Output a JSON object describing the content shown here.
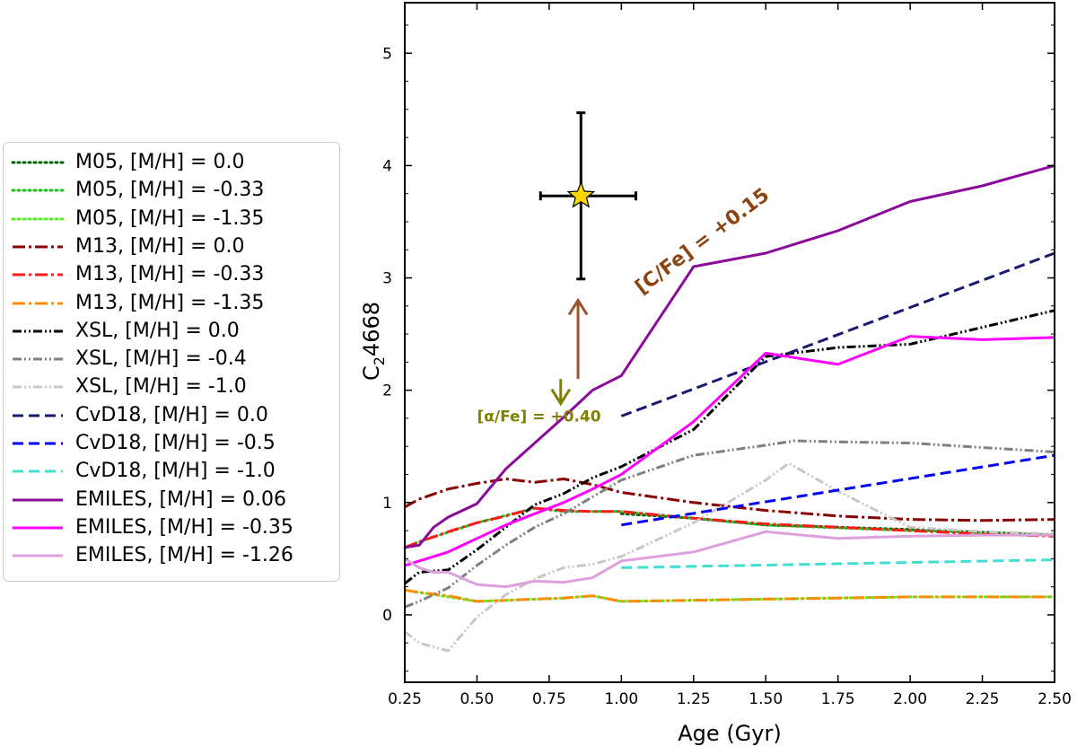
{
  "chart_data": {
    "type": "line",
    "xlabel": "Age (Gyr)",
    "ylabel": "C",
    "ylabel_sub": "2",
    "ylabel_suffix": "4668",
    "xlim": [
      0.25,
      2.5
    ],
    "ylim": [
      -0.6,
      5.45
    ],
    "xticks": [
      "0.25",
      "0.50",
      "0.75",
      "1.00",
      "1.25",
      "1.50",
      "1.75",
      "2.00",
      "2.25",
      "2.50"
    ],
    "yticks": [
      "0",
      "1",
      "2",
      "3",
      "4",
      "5"
    ],
    "legend_position": "left-outside",
    "series": [
      {
        "name": "M05, [M/H] = 0.0",
        "color": "#006400",
        "dash": "dotted",
        "x": [
          1.0,
          1.25,
          1.5,
          2.0,
          2.5
        ],
        "y": [
          0.9,
          0.86,
          0.8,
          0.76,
          0.71
        ]
      },
      {
        "name": "M05, [M/H] = -0.33",
        "color": "#22bb22",
        "dash": "dotted",
        "x": [
          0.25,
          0.3,
          0.5,
          0.7,
          0.8,
          1.0,
          1.25,
          1.5,
          2.0,
          2.5
        ],
        "y": [
          0.6,
          0.65,
          0.82,
          0.95,
          0.92,
          0.92,
          0.86,
          0.8,
          0.75,
          0.71
        ]
      },
      {
        "name": "M05, [M/H] = -1.35",
        "color": "#55ee22",
        "dash": "dotted",
        "x": [
          0.25,
          0.3,
          0.5,
          0.6,
          0.8,
          0.9,
          1.0,
          1.5,
          2.0,
          2.5
        ],
        "y": [
          0.22,
          0.2,
          0.12,
          0.13,
          0.15,
          0.17,
          0.12,
          0.14,
          0.16,
          0.16
        ]
      },
      {
        "name": "M13, [M/H] = 0.0",
        "color": "#8b0000",
        "dash": "dashdot",
        "x": [
          0.25,
          0.3,
          0.4,
          0.5,
          0.6,
          0.7,
          0.8,
          0.9,
          1.0,
          1.25,
          1.5,
          1.75,
          2.0,
          2.25,
          2.5
        ],
        "y": [
          0.96,
          1.03,
          1.12,
          1.17,
          1.21,
          1.18,
          1.21,
          1.16,
          1.09,
          1.0,
          0.93,
          0.88,
          0.85,
          0.84,
          0.85
        ]
      },
      {
        "name": "M13, [M/H] = -0.33",
        "color": "#ff1a1a",
        "dash": "dashdot",
        "x": [
          0.25,
          0.3,
          0.4,
          0.5,
          0.6,
          0.7,
          0.8,
          0.9,
          1.0,
          1.25,
          1.5,
          1.75,
          2.0,
          2.25,
          2.5
        ],
        "y": [
          0.6,
          0.65,
          0.74,
          0.82,
          0.88,
          0.95,
          0.93,
          0.92,
          0.92,
          0.86,
          0.81,
          0.78,
          0.75,
          0.72,
          0.7
        ]
      },
      {
        "name": "M13, [M/H] = -1.35",
        "color": "#ff8c00",
        "dash": "dashdot",
        "x": [
          0.25,
          0.3,
          0.4,
          0.5,
          0.6,
          0.7,
          0.8,
          0.9,
          1.0,
          1.25,
          1.5,
          1.75,
          2.0,
          2.25,
          2.5
        ],
        "y": [
          0.22,
          0.2,
          0.17,
          0.12,
          0.13,
          0.14,
          0.15,
          0.17,
          0.12,
          0.13,
          0.14,
          0.15,
          0.16,
          0.16,
          0.16
        ]
      },
      {
        "name": "XSL, [M/H] = 0.0",
        "color": "#000000",
        "dash": "dashdotdot",
        "x": [
          0.25,
          0.3,
          0.4,
          0.5,
          0.6,
          0.7,
          0.8,
          0.9,
          1.0,
          1.25,
          1.5,
          1.75,
          2.0,
          2.25,
          2.5
        ],
        "y": [
          0.28,
          0.38,
          0.4,
          0.58,
          0.78,
          0.98,
          1.08,
          1.22,
          1.32,
          1.65,
          2.3,
          2.38,
          2.41,
          2.56,
          2.71
        ]
      },
      {
        "name": "XSL, [M/H] = -0.4",
        "color": "#808080",
        "dash": "dashdotdot",
        "x": [
          0.25,
          0.3,
          0.4,
          0.5,
          0.6,
          0.7,
          0.8,
          0.9,
          1.0,
          1.25,
          1.5,
          1.6,
          1.75,
          2.0,
          2.25,
          2.5
        ],
        "y": [
          0.07,
          0.12,
          0.24,
          0.44,
          0.62,
          0.78,
          0.9,
          1.05,
          1.2,
          1.42,
          1.51,
          1.55,
          1.54,
          1.53,
          1.49,
          1.45
        ]
      },
      {
        "name": "XSL, [M/H] = -1.0",
        "color": "#c8c8c8",
        "dash": "dashdotdot",
        "x": [
          0.25,
          0.3,
          0.4,
          0.5,
          0.6,
          0.7,
          0.8,
          0.9,
          1.0,
          1.25,
          1.5,
          1.58,
          1.75,
          2.0,
          2.25,
          2.5
        ],
        "y": [
          -0.15,
          -0.25,
          -0.32,
          -0.02,
          0.18,
          0.32,
          0.42,
          0.45,
          0.52,
          0.82,
          1.2,
          1.35,
          1.1,
          0.78,
          0.74,
          0.72
        ]
      },
      {
        "name": "CvD18, [M/H] = 0.0",
        "color": "#191970",
        "dash": "dashed",
        "x": [
          1.0,
          2.5
        ],
        "y": [
          1.77,
          3.22
        ]
      },
      {
        "name": "CvD18, [M/H] = -0.5",
        "color": "#0000ee",
        "dash": "dashed",
        "x": [
          1.0,
          2.5
        ],
        "y": [
          0.8,
          1.42
        ]
      },
      {
        "name": "CvD18, [M/H] = -1.0",
        "color": "#40e0d0",
        "dash": "dashed",
        "x": [
          1.0,
          2.5
        ],
        "y": [
          0.42,
          0.49
        ]
      },
      {
        "name": "EMILES, [M/H] = 0.06",
        "color": "#8b0a9a",
        "dash": "solid",
        "x": [
          0.25,
          0.3,
          0.35,
          0.4,
          0.5,
          0.6,
          0.7,
          0.8,
          0.9,
          1.0,
          1.25,
          1.5,
          1.75,
          2.0,
          2.25,
          2.5
        ],
        "y": [
          0.6,
          0.62,
          0.78,
          0.87,
          0.99,
          1.3,
          1.53,
          1.76,
          2.0,
          2.13,
          3.1,
          3.22,
          3.42,
          3.68,
          3.82,
          4.0
        ]
      },
      {
        "name": "EMILES, [M/H] = -0.35",
        "color": "#ff00ff",
        "dash": "solid",
        "x": [
          0.25,
          0.3,
          0.4,
          0.5,
          0.6,
          0.7,
          0.8,
          0.9,
          1.0,
          1.25,
          1.5,
          1.75,
          2.0,
          2.25,
          2.5
        ],
        "y": [
          0.44,
          0.48,
          0.56,
          0.68,
          0.8,
          0.9,
          1.0,
          1.12,
          1.25,
          1.72,
          2.33,
          2.23,
          2.48,
          2.45,
          2.47
        ]
      },
      {
        "name": "EMILES, [M/H] = -1.26",
        "color": "#dda0dd",
        "dash": "solid",
        "x": [
          0.25,
          0.3,
          0.35,
          0.4,
          0.5,
          0.6,
          0.7,
          0.8,
          0.9,
          1.0,
          1.25,
          1.5,
          1.75,
          2.0,
          2.25,
          2.5
        ],
        "y": [
          0.5,
          0.42,
          0.38,
          0.38,
          0.27,
          0.25,
          0.3,
          0.29,
          0.33,
          0.48,
          0.56,
          0.74,
          0.68,
          0.7,
          0.71,
          0.71
        ]
      }
    ],
    "measurement": {
      "x": 0.86,
      "y": 3.73,
      "xerr": [
        0.72,
        1.05
      ],
      "yerr": [
        2.99,
        4.47
      ],
      "marker": "star",
      "color": "#ffd700"
    },
    "annotations": [
      {
        "text": "[C/Fe] = +0.15",
        "color": "#8b4513",
        "x": 1.07,
        "y": 2.85,
        "rotation_deg": -37
      },
      {
        "text": "[α/Fe] = +0.40",
        "color": "#808000",
        "x": 0.5,
        "y": 1.72
      }
    ],
    "arrows": [
      {
        "name": "up-arrow",
        "color": "#a0522d",
        "x": 0.85,
        "y_from": 2.1,
        "y_to": 2.8
      },
      {
        "name": "down-arrow",
        "color": "#808000",
        "x": 0.79,
        "y_from": 2.1,
        "y_to": 1.88
      }
    ]
  }
}
